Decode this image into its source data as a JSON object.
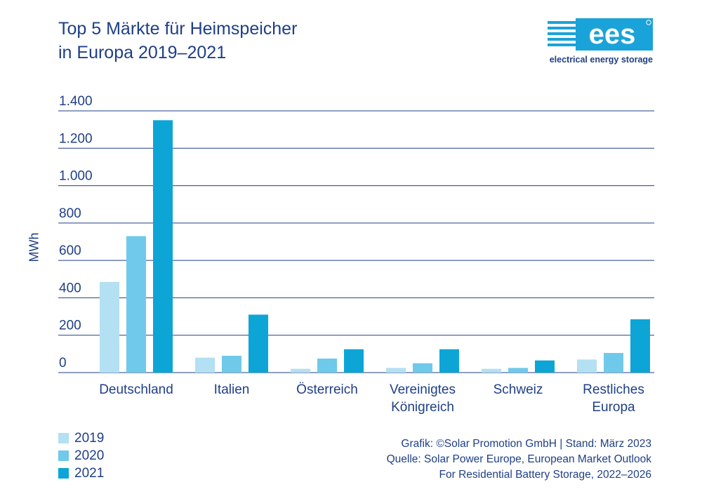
{
  "title_line1": "Top 5 Märkte für Heimspeicher",
  "title_line2": "in Europa 2019–2021",
  "logo": {
    "letters": "ees",
    "tagline": "electrical energy storage",
    "icon": "ees-logo-icon",
    "colors": {
      "box": "#1aa3d9",
      "stripes": "#1aa3d9"
    }
  },
  "colors": {
    "text": "#1f3f86",
    "grid": "#1f3f86",
    "2019": "#b3e0f2",
    "2020": "#6fc9ea",
    "2021": "#0da5d6"
  },
  "chart_data": {
    "type": "bar",
    "ylabel": "MWh",
    "ylim": [
      0,
      1400
    ],
    "yticks": [
      0,
      200,
      400,
      600,
      800,
      1000,
      1200,
      1400
    ],
    "ytick_labels": [
      "0",
      "200",
      "400",
      "600",
      "800",
      "1.000",
      "1.200",
      "1.400"
    ],
    "grid": true,
    "legend_position": "bottom-left",
    "categories": [
      [
        "Deutschland"
      ],
      [
        "Italien"
      ],
      [
        "Österreich"
      ],
      [
        "Vereinigtes",
        "Königreich"
      ],
      [
        "Schweiz"
      ],
      [
        "Restliches",
        "Europa"
      ]
    ],
    "series": [
      {
        "name": "2019",
        "values": [
          485,
          80,
          20,
          25,
          20,
          70
        ]
      },
      {
        "name": "2020",
        "values": [
          730,
          90,
          75,
          50,
          25,
          105
        ]
      },
      {
        "name": "2021",
        "values": [
          1350,
          310,
          125,
          125,
          65,
          285
        ]
      }
    ]
  },
  "source": {
    "line1": "Grafik: ©Solar Promotion GmbH | Stand: März 2023",
    "line2": "Quelle: Solar Power Europe, European Market Outlook",
    "line3": "For Residential Battery Storage, 2022–2026"
  }
}
